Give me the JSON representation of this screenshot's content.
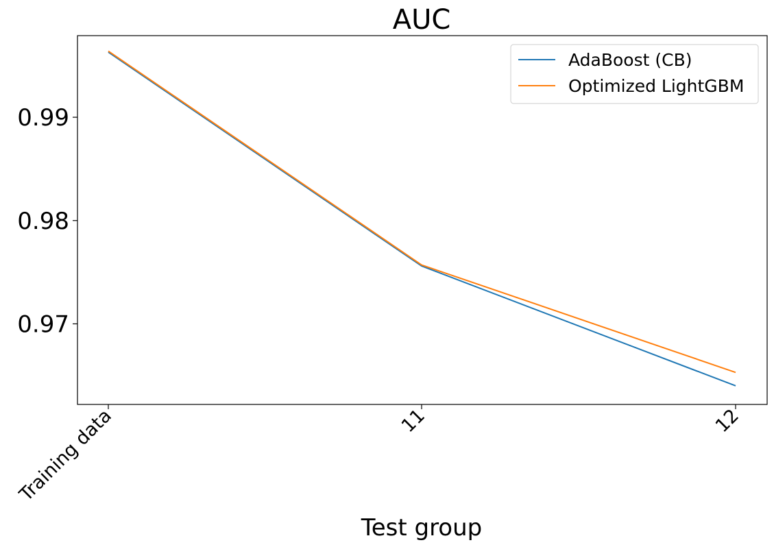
{
  "chart_data": {
    "type": "line",
    "title": "AUC",
    "xlabel": "Test group",
    "ylabel": "",
    "categories": [
      "Training data",
      "11",
      "12"
    ],
    "yticks": [
      0.97,
      0.98,
      0.99
    ],
    "ytick_labels": [
      "0.97",
      "0.98",
      "0.99"
    ],
    "ylim": [
      0.9622,
      0.9979
    ],
    "grid": false,
    "legend_position": "top-right",
    "series": [
      {
        "name": "AdaBoost (CB)",
        "color": "#1f77b4",
        "values": [
          0.9963,
          0.9756,
          0.964
        ]
      },
      {
        "name": "Optimized LightGBM",
        "color": "#ff7f0e",
        "values": [
          0.9964,
          0.9757,
          0.9653
        ]
      }
    ]
  }
}
